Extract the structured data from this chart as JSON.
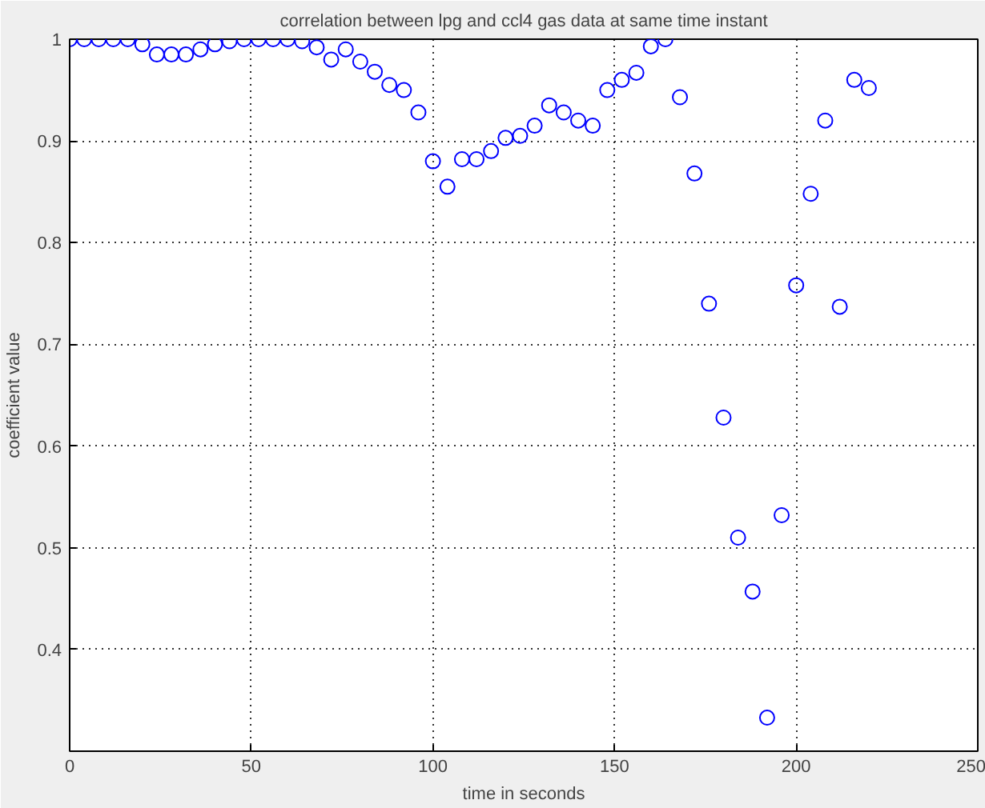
{
  "chart_data": {
    "type": "scatter",
    "title": "correlation between lpg and ccl4 gas data at same time instant",
    "xlabel": "time in seconds",
    "ylabel": "coefficient value",
    "x": [
      0,
      4,
      8,
      12,
      16,
      20,
      24,
      28,
      32,
      36,
      40,
      44,
      48,
      52,
      56,
      60,
      64,
      68,
      72,
      76,
      80,
      84,
      88,
      92,
      96,
      100,
      104,
      108,
      112,
      116,
      120,
      124,
      128,
      132,
      136,
      140,
      144,
      148,
      152,
      156,
      160,
      164,
      168,
      172,
      176,
      180,
      184,
      188,
      192,
      196,
      200,
      204,
      208,
      212,
      216,
      220
    ],
    "series": [
      {
        "color": "#0000ff",
        "values": [
          1.0,
          1.0,
          1.0,
          1.0,
          1.0,
          0.995,
          0.985,
          0.985,
          0.985,
          0.99,
          0.995,
          0.998,
          1.0,
          1.0,
          1.0,
          1.0,
          0.998,
          0.992,
          0.98,
          0.99,
          0.978,
          0.968,
          0.955,
          0.95,
          0.928,
          0.88,
          0.855,
          0.882,
          0.882,
          0.89,
          0.903,
          0.905,
          0.915,
          0.935,
          0.928,
          0.92,
          0.915,
          0.95,
          0.96,
          0.967,
          0.993,
          1.0,
          0.943,
          0.868,
          0.74,
          0.628,
          0.51,
          0.457,
          0.333,
          0.532,
          0.758,
          0.848,
          0.92,
          0.737,
          0.96,
          0.952
        ]
      }
    ],
    "xlim": [
      0,
      250
    ],
    "xticks": [
      0,
      50,
      100,
      150,
      200,
      250
    ],
    "ylim": [
      0.3,
      1
    ],
    "yticks": [
      0.4,
      0.5,
      0.6,
      0.7,
      0.8,
      0.9,
      1
    ],
    "grid": true,
    "marker": "circle"
  }
}
